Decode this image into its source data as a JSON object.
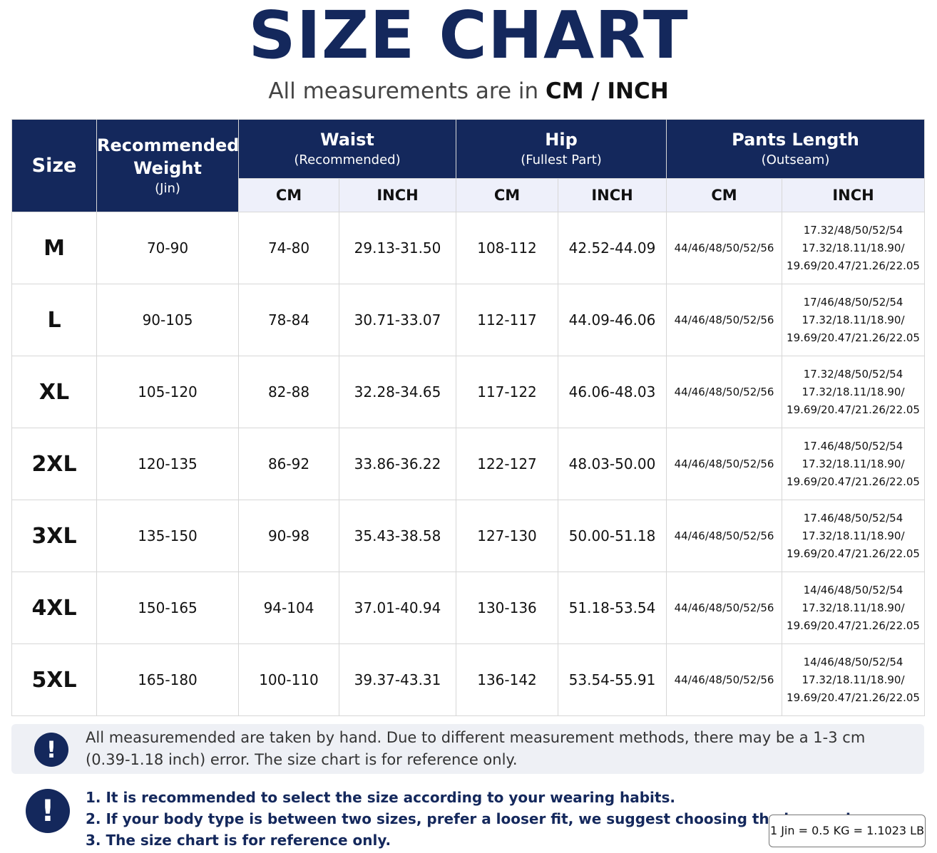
{
  "title": "SIZE CHART",
  "subtitle": {
    "prefix": "All measurements are in ",
    "units": "CM / INCH"
  },
  "table": {
    "headers": {
      "size": "Size",
      "weight": "Recommended Weight",
      "weight_unit": "(Jin)",
      "waist": "Waist",
      "waist_note": "(Recommended)",
      "hip": "Hip",
      "hip_note": "(Fullest Part)",
      "length": "Pants Length",
      "length_note": "(Outseam)",
      "cm": "CM",
      "inch": "INCH"
    },
    "rows": [
      {
        "size": "M",
        "weight": "70-90",
        "waist_cm": "74-80",
        "waist_in": "29.13-31.50",
        "hip_cm": "108-112",
        "hip_in": "42.52-44.09",
        "len_cm": "44/46/48/50/52/56",
        "len_in_1": "17.32/48/50/52/54",
        "len_in_2": "17.32/18.11/18.90/",
        "len_in_3": "19.69/20.47/21.26/22.05"
      },
      {
        "size": "L",
        "weight": "90-105",
        "waist_cm": "78-84",
        "waist_in": "30.71-33.07",
        "hip_cm": "112-117",
        "hip_in": "44.09-46.06",
        "len_cm": "44/46/48/50/52/56",
        "len_in_1": "17/46/48/50/52/54",
        "len_in_2": "17.32/18.11/18.90/",
        "len_in_3": "19.69/20.47/21.26/22.05"
      },
      {
        "size": "XL",
        "weight": "105-120",
        "waist_cm": "82-88",
        "waist_in": "32.28-34.65",
        "hip_cm": "117-122",
        "hip_in": "46.06-48.03",
        "len_cm": "44/46/48/50/52/56",
        "len_in_1": "17.32/48/50/52/54",
        "len_in_2": "17.32/18.11/18.90/",
        "len_in_3": "19.69/20.47/21.26/22.05"
      },
      {
        "size": "2XL",
        "weight": "120-135",
        "waist_cm": "86-92",
        "waist_in": "33.86-36.22",
        "hip_cm": "122-127",
        "hip_in": "48.03-50.00",
        "len_cm": "44/46/48/50/52/56",
        "len_in_1": "17.46/48/50/52/54",
        "len_in_2": "17.32/18.11/18.90/",
        "len_in_3": "19.69/20.47/21.26/22.05"
      },
      {
        "size": "3XL",
        "weight": "135-150",
        "waist_cm": "90-98",
        "waist_in": "35.43-38.58",
        "hip_cm": "127-130",
        "hip_in": "50.00-51.18",
        "len_cm": "44/46/48/50/52/56",
        "len_in_1": "17.46/48/50/52/54",
        "len_in_2": "17.32/18.11/18.90/",
        "len_in_3": "19.69/20.47/21.26/22.05"
      },
      {
        "size": "4XL",
        "weight": "150-165",
        "waist_cm": "94-104",
        "waist_in": "37.01-40.94",
        "hip_cm": "130-136",
        "hip_in": "51.18-53.54",
        "len_cm": "44/46/48/50/52/56",
        "len_in_1": "14/46/48/50/52/54",
        "len_in_2": "17.32/18.11/18.90/",
        "len_in_3": "19.69/20.47/21.26/22.05"
      },
      {
        "size": "5XL",
        "weight": "165-180",
        "waist_cm": "100-110",
        "waist_in": "39.37-43.31",
        "hip_cm": "136-142",
        "hip_in": "53.54-55.91",
        "len_cm": "44/46/48/50/52/56",
        "len_in_1": "14/46/48/50/52/54",
        "len_in_2": "17.32/18.11/18.90/",
        "len_in_3": "19.69/20.47/21.26/22.05"
      }
    ]
  },
  "note": {
    "icon": "exclamation-icon",
    "line1": "All measuremended are taken by hand. Due to different measurement methods, there may be a 1-3 cm",
    "line2": "(0.39-1.18 inch) error. The size chart is for reference only."
  },
  "tips": {
    "icon": "exclamation-icon",
    "items": [
      "1. It is recommended to select the size according to your wearing habits.",
      "2. If your body type is between two sizes, prefer a looser fit, we suggest choosing the larger size.",
      "3. The size chart is for reference only."
    ]
  },
  "conversion": "1 Jin = 0.5 KG = 1.1023 LB",
  "colors": {
    "navy": "#14285c",
    "subheader_bg": "#eef0fa",
    "note_bg": "#eef0f5"
  }
}
